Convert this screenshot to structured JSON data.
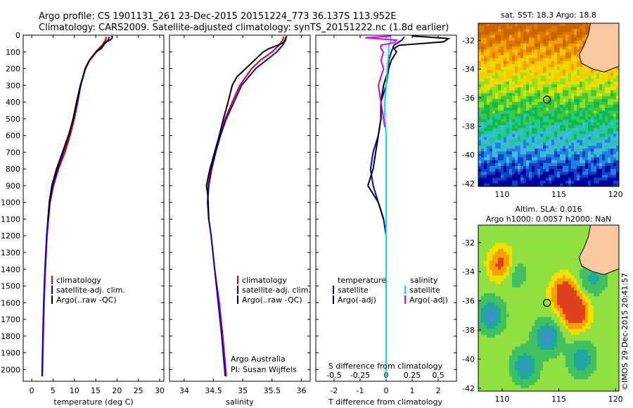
{
  "title": {
    "line1": "Argo profile: CS 1901131_261 23-Dec-2015 20151224_773 36.137S 113.952E",
    "line2": "Climatology: CARS2009. Satellite-adjusted climatology: synTS_20151222.nc (1.8d earlier)"
  },
  "colors": {
    "climatology": "#e00000",
    "satellite": "#0000e0",
    "argo": "#000000",
    "satellite_s": "#00e0e0",
    "argo_s": "#e000e0",
    "dots": "#00c0c0"
  },
  "chart_data": [
    {
      "type": "line",
      "title": "",
      "xlabel": "temperature (deg C)",
      "ylabel": "",
      "xlim": [
        -2,
        31
      ],
      "ylim": [
        2070,
        0
      ],
      "xticks": [
        "0",
        "5",
        "10",
        "15",
        "20",
        "25",
        "30"
      ],
      "yticks": [
        "0",
        "100",
        "200",
        "300",
        "400",
        "500",
        "600",
        "700",
        "800",
        "900",
        "1000",
        "1100",
        "1200",
        "1300",
        "1400",
        "1500",
        "1600",
        "1700",
        "1800",
        "1900",
        "2000"
      ],
      "legend": {
        "position": "lower-center",
        "entries": [
          "climatology",
          "satellite-adj. clim.",
          "Argo(..raw -QC)"
        ]
      },
      "series": [
        {
          "name": "climatology",
          "color": "#e00000",
          "depth": [
            10,
            30,
            60,
            100,
            150,
            200,
            300,
            400,
            500,
            600,
            700,
            800,
            900,
            1000,
            1200,
            1400,
            1600,
            1800,
            2040
          ],
          "values": [
            17.5,
            17.3,
            16.5,
            15.0,
            13.5,
            12.5,
            11.5,
            10.8,
            10.0,
            9.0,
            7.8,
            6.3,
            5.1,
            4.3,
            3.6,
            3.2,
            2.9,
            2.7,
            2.5
          ]
        },
        {
          "name": "satellite-adj. clim.",
          "color": "#0000e0",
          "depth": [
            10,
            30,
            60,
            100,
            150,
            200,
            300,
            400,
            500,
            600,
            700,
            800,
            900,
            1000,
            1200,
            1400,
            1600,
            1800,
            2040
          ],
          "values": [
            18.2,
            17.9,
            16.8,
            15.2,
            13.6,
            12.6,
            11.5,
            10.6,
            9.8,
            8.6,
            7.2,
            5.8,
            4.7,
            4.1,
            3.5,
            3.1,
            2.8,
            2.6,
            2.4
          ]
        },
        {
          "name": "Argo(..raw -QC)",
          "color": "#000000",
          "depth": [
            5,
            10,
            20,
            30,
            45,
            60,
            80,
            100,
            150,
            200,
            300,
            400,
            500,
            600,
            700,
            800,
            900,
            1000,
            1100
          ],
          "values": [
            18.7,
            18.9,
            18.8,
            18.3,
            17.1,
            16.9,
            16.3,
            15.1,
            13.6,
            12.6,
            11.4,
            10.5,
            9.7,
            8.7,
            7.4,
            6.0,
            4.9,
            4.2,
            3.8
          ]
        }
      ]
    },
    {
      "type": "line",
      "title": "",
      "xlabel": "salinity",
      "ylabel": "",
      "xlim": [
        33.75,
        36.15
      ],
      "ylim": [
        2070,
        0
      ],
      "xticks": [
        "34",
        "34.5",
        "35",
        "35.5",
        "36"
      ],
      "legend": {
        "position": "lower-center",
        "entries": [
          "climatology",
          "satellite-adj. clim.",
          "Argo(..raw -QC)"
        ]
      },
      "annotation_lines": [
        "Argo Australia",
        "PI: Susan Wijffels"
      ],
      "series": [
        {
          "name": "climatology",
          "color": "#e00000",
          "depth": [
            10,
            30,
            60,
            100,
            150,
            200,
            300,
            400,
            500,
            600,
            700,
            800,
            900,
            1000,
            1100,
            1200,
            1400,
            1600,
            1800,
            2040
          ],
          "values": [
            35.7,
            35.68,
            35.62,
            35.5,
            35.3,
            35.15,
            34.95,
            34.82,
            34.7,
            34.6,
            34.52,
            34.46,
            34.41,
            34.4,
            34.42,
            34.46,
            34.52,
            34.6,
            34.66,
            34.72
          ]
        },
        {
          "name": "satellite-adj. clim.",
          "color": "#0000e0",
          "depth": [
            10,
            30,
            60,
            100,
            150,
            200,
            300,
            400,
            500,
            600,
            700,
            800,
            900,
            1000,
            1100,
            1200,
            1400,
            1600,
            1800,
            2040
          ],
          "values": [
            35.74,
            35.73,
            35.68,
            35.58,
            35.4,
            35.22,
            34.98,
            34.85,
            34.72,
            34.62,
            34.54,
            34.47,
            34.42,
            34.4,
            34.42,
            34.46,
            34.52,
            34.58,
            34.64,
            34.7
          ]
        },
        {
          "name": "Argo(..raw -QC)",
          "color": "#000000",
          "depth": [
            5,
            15,
            30,
            45,
            60,
            80,
            100,
            150,
            200,
            250,
            300,
            400,
            500,
            600,
            700,
            800,
            900,
            950,
            1000,
            1100
          ],
          "values": [
            35.75,
            35.74,
            35.72,
            35.69,
            35.6,
            35.45,
            35.35,
            35.2,
            35.05,
            34.9,
            34.82,
            34.75,
            34.67,
            34.6,
            34.52,
            34.44,
            34.38,
            34.4,
            34.41,
            34.42
          ]
        }
      ]
    },
    {
      "type": "line",
      "title": "",
      "xlabel": "T difference from climatology",
      "xlabel_top": "S difference from climatology",
      "ylabel": "",
      "xlim": [
        -2.7,
        2.7
      ],
      "ylim": [
        2070,
        0
      ],
      "xticks": [
        "-2",
        "-1",
        "0",
        "1",
        "2"
      ],
      "xticks_s": [
        "-0.5",
        "-0.25",
        "0",
        "0.25",
        "0.5"
      ],
      "legend": {
        "position": "lower-center",
        "headers": [
          "temperature",
          "salinity"
        ],
        "entries": [
          "satellite",
          "Argo(-adj)",
          "satellite",
          "Argo(-adj)"
        ]
      },
      "series": [
        {
          "name": "satellite",
          "color": "#0000e0",
          "depth": [
            10,
            30,
            60,
            100,
            150,
            200,
            300,
            400,
            500,
            600,
            700,
            800,
            900,
            1000,
            1100,
            1200,
            1600,
            2040
          ],
          "values": [
            0.7,
            0.6,
            0.3,
            0.2,
            0.1,
            0.1,
            0.0,
            -0.2,
            -0.2,
            -0.3,
            -0.5,
            -0.6,
            -0.5,
            -0.3,
            -0.1,
            0.0,
            0.0,
            0.0
          ]
        },
        {
          "name": "Argo(-adj)",
          "color": "#000000",
          "depth": [
            5,
            10,
            20,
            40,
            60,
            80,
            100,
            150,
            200,
            300,
            400,
            500,
            600,
            700,
            800,
            900,
            950,
            1000,
            1050,
            1100
          ],
          "values": [
            1.0,
            1.5,
            2.4,
            2.2,
            0.5,
            0.3,
            0.4,
            0.2,
            0.1,
            -0.1,
            -0.2,
            -0.2,
            -0.3,
            -0.4,
            -0.5,
            -0.7,
            -0.5,
            -0.3,
            -0.2,
            -0.1
          ]
        },
        {
          "name": "satellite",
          "color": "#00e0e0",
          "depth": [
            10,
            30,
            60,
            100,
            200,
            300,
            400,
            500,
            600,
            700,
            800,
            900,
            1000,
            1200,
            1600,
            2040
          ],
          "values": [
            0.15,
            0.2,
            0.1,
            0.1,
            0.05,
            0.0,
            -0.05,
            -0.05,
            0.0,
            0.0,
            0.0,
            0.0,
            0.0,
            0.0,
            0.0,
            0.0
          ]
        },
        {
          "name": "Argo(-adj)",
          "color": "#e000e0",
          "depth": [
            5,
            15,
            30,
            45,
            60,
            80,
            100,
            150,
            200,
            300,
            400,
            500,
            550
          ],
          "values": [
            0.2,
            -0.8,
            0.4,
            0.3,
            -0.2,
            -0.2,
            -0.1,
            -0.2,
            -0.1,
            -0.3,
            -0.2,
            -0.1,
            -0.05
          ]
        }
      ]
    }
  ],
  "maps": {
    "sst": {
      "title": "sat. SST: 18.3 Argo: 18.8",
      "xticks": [
        "110",
        "115",
        "120"
      ],
      "yticks": [
        "-32",
        "-34",
        "-36",
        "-38",
        "-40",
        "-42"
      ]
    },
    "sla": {
      "title_line1": "Altim. SLA: 0.016",
      "title_line2": "Argo h1000: 0.0057 h2000: NaN",
      "xticks": [
        "110",
        "115",
        "120"
      ],
      "yticks": [
        "-32",
        "-34",
        "-36",
        "-38",
        "-40",
        "-42"
      ]
    }
  },
  "footer": "©IMOS 29-Dec-2015 20:41:57"
}
